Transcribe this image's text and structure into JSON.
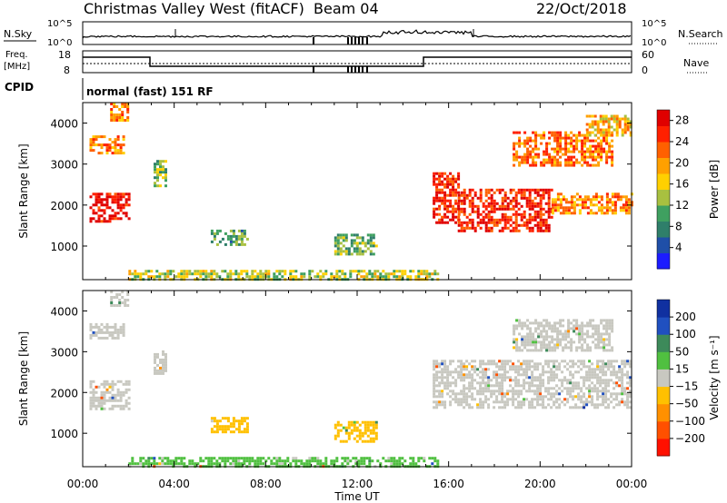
{
  "header": {
    "title": "Christmas Valley West (fitACF)",
    "beam": "Beam 04",
    "date": "22/Oct/2018"
  },
  "status_panel": {
    "nsky_label": "N.Sky",
    "nsearch_label": "N.Search",
    "nsky_ticks": [
      "10^5",
      "10^0"
    ],
    "freq_label_1": "Freq.",
    "freq_label_2": "[MHz]",
    "freq_ticks": [
      "18",
      "8"
    ],
    "nave_label": "Nave",
    "nave_ticks": [
      "60",
      "0"
    ],
    "cpid_label": "CPID",
    "cpid_value": "normal (fast) 151 RF"
  },
  "chart_data": [
    {
      "type": "heatmap",
      "name": "power",
      "ylabel": "Slant Range [km]",
      "xlabel": "Time UT",
      "xlim": [
        "00:00",
        "24:00"
      ],
      "ylim": [
        180,
        4500
      ],
      "x_ticks": [
        "00:00",
        "04:00",
        "08:00",
        "12:00",
        "16:00",
        "20:00",
        "00:00"
      ],
      "y_ticks": [
        1000,
        2000,
        3000,
        4000
      ],
      "colorbar": {
        "label": "Power [dB]",
        "ticks": [
          4,
          8,
          12,
          16,
          20,
          24,
          28
        ],
        "range": [
          0,
          30
        ],
        "colors": [
          "#1c1cff",
          "#1f4fa8",
          "#2f7f6a",
          "#3fa060",
          "#a8c040",
          "#ffd000",
          "#ffa000",
          "#ff6000",
          "#ff2000",
          "#e00000"
        ]
      },
      "echo_regions": [
        {
          "t": [
            0.3,
            2.0
          ],
          "r": [
            1600,
            2300
          ],
          "power": 28
        },
        {
          "t": [
            0.3,
            1.8
          ],
          "r": [
            3300,
            3700
          ],
          "power": 22
        },
        {
          "t": [
            1.2,
            2.0
          ],
          "r": [
            4100,
            4500
          ],
          "power": 20
        },
        {
          "t": [
            3.1,
            3.6
          ],
          "r": [
            2450,
            3100
          ],
          "power": 12
        },
        {
          "t": [
            5.6,
            7.2
          ],
          "r": [
            1050,
            1400
          ],
          "power": 10
        },
        {
          "t": [
            11.0,
            12.8
          ],
          "r": [
            800,
            1300
          ],
          "power": 12
        },
        {
          "t": [
            15.3,
            16.4
          ],
          "r": [
            1600,
            2800
          ],
          "power": 26
        },
        {
          "t": [
            16.4,
            20.5
          ],
          "r": [
            1400,
            2400
          ],
          "power": 26
        },
        {
          "t": [
            20.5,
            24.0
          ],
          "r": [
            1800,
            2300
          ],
          "power": 20
        },
        {
          "t": [
            18.8,
            23.2
          ],
          "r": [
            3000,
            3800
          ],
          "power": 22
        },
        {
          "t": [
            22.0,
            24.0
          ],
          "r": [
            3700,
            4200
          ],
          "power": 18
        },
        {
          "t": [
            2.0,
            15.5
          ],
          "r": [
            200,
            420
          ],
          "power": 14
        }
      ]
    },
    {
      "type": "heatmap",
      "name": "velocity",
      "ylabel": "Slant Range [km]",
      "xlabel": "Time UT",
      "xlim": [
        "00:00",
        "24:00"
      ],
      "ylim": [
        180,
        4500
      ],
      "x_ticks": [
        "00:00",
        "04:00",
        "08:00",
        "12:00",
        "16:00",
        "20:00",
        "00:00"
      ],
      "y_ticks": [
        1000,
        2000,
        3000,
        4000
      ],
      "colorbar": {
        "label": "Velocity [m s⁻¹]",
        "ticks": [
          200,
          100,
          50,
          15,
          -15,
          -50,
          -100,
          -200
        ],
        "range": [
          -250,
          250
        ],
        "colors": [
          "#1030a0",
          "#2050c0",
          "#3d8a5a",
          "#50c040",
          "#c8c8c0",
          "#ffc000",
          "#ff9000",
          "#ff5000",
          "#ff1000"
        ]
      },
      "echo_regions": [
        {
          "t": [
            0.3,
            2.0
          ],
          "r": [
            1600,
            2300
          ],
          "velocity": 0
        },
        {
          "t": [
            0.3,
            1.8
          ],
          "r": [
            3300,
            3700
          ],
          "velocity": 0
        },
        {
          "t": [
            1.2,
            2.0
          ],
          "r": [
            4100,
            4500
          ],
          "velocity": 0
        },
        {
          "t": [
            3.1,
            3.6
          ],
          "r": [
            2450,
            3100
          ],
          "velocity": 0
        },
        {
          "t": [
            5.6,
            7.2
          ],
          "r": [
            1050,
            1400
          ],
          "velocity": -60
        },
        {
          "t": [
            11.0,
            12.8
          ],
          "r": [
            800,
            1300
          ],
          "velocity": -60
        },
        {
          "t": [
            15.3,
            24.0
          ],
          "r": [
            1600,
            2800
          ],
          "velocity": 0
        },
        {
          "t": [
            18.8,
            23.2
          ],
          "r": [
            3000,
            3800
          ],
          "velocity": 0
        },
        {
          "t": [
            2.0,
            15.5
          ],
          "r": [
            200,
            420
          ],
          "velocity": 40
        }
      ]
    }
  ],
  "colors": {
    "frame": "#000000",
    "blank": "#ffffff"
  }
}
